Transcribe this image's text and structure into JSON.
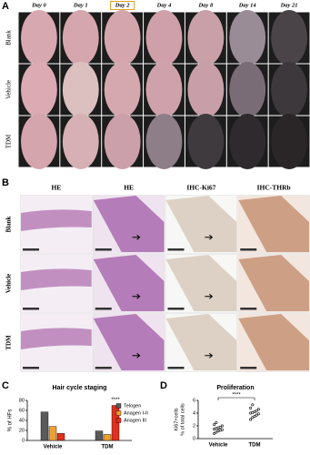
{
  "panel_labels": [
    "A",
    "B",
    "C",
    "D"
  ],
  "panel_a": {
    "columns": [
      "Day 0",
      "Day 1",
      "Day 2",
      "Day 4",
      "Day 8",
      "Day 14",
      "Day 21"
    ],
    "highlighted_column": 2,
    "rows": [
      "Blank",
      "Vehicle",
      "TDM"
    ]
  },
  "panel_b": {
    "columns": [
      "HE",
      "HE",
      "IHC-Ki67",
      "IHC-THRb"
    ],
    "rows": [
      "Blank",
      "Vehicle",
      "TDM"
    ]
  },
  "chart_data": [
    {
      "type": "bar",
      "title": "Hair cycle staging",
      "y_label": "% of HFs",
      "categories": [
        "Vehicle",
        "TDM"
      ],
      "series": [
        {
          "name": "Telogen",
          "color": "#5a5a5a",
          "values": [
            57,
            19
          ]
        },
        {
          "name": "Anagen I-II",
          "color": "#f0a030",
          "values": [
            28,
            12
          ]
        },
        {
          "name": "Anagen III",
          "color": "#e0301e",
          "values": [
            14,
            70
          ]
        }
      ],
      "ylim": [
        0,
        80
      ],
      "yticks": [
        0,
        20,
        40,
        60,
        80
      ],
      "annotation": "****"
    },
    {
      "type": "strip",
      "title": "Proliferation",
      "y_label": [
        "Ki67+cells",
        "% of total cells"
      ],
      "categories": [
        "Vehicle",
        "TDM"
      ],
      "groups": [
        [
          0.8,
          1.0,
          1.2,
          1.3,
          1.4,
          1.5,
          1.6,
          1.7,
          1.8,
          2.0,
          2.2,
          2.5
        ],
        [
          3.0,
          3.3,
          3.5,
          3.7,
          3.9,
          4.0,
          4.1,
          4.2,
          4.4,
          4.6,
          4.8,
          5.3
        ]
      ],
      "color": "#000000",
      "ylim": [
        0,
        6
      ],
      "yticks": [
        0,
        2,
        4,
        6
      ],
      "annotation": "****"
    }
  ]
}
